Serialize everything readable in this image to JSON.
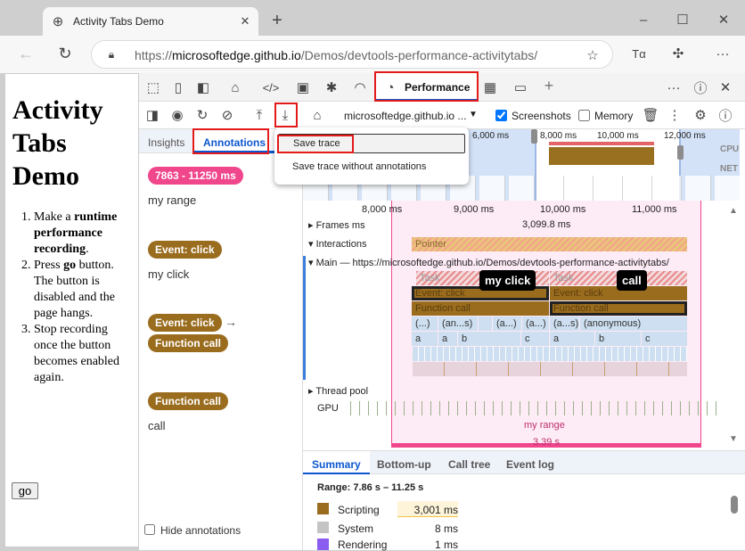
{
  "browser": {
    "tab_title": "Activity Tabs Demo",
    "url_prefix": "https://",
    "url_host": "microsoftedge.github.io",
    "url_path": "/Demos/devtools-performance-activitytabs/"
  },
  "page": {
    "title": "Activity Tabs Demo",
    "steps": [
      {
        "pre": "Make a ",
        "bold": "runtime performance recording",
        "post": "."
      },
      {
        "pre": "Press ",
        "bold": "go",
        "post": " button. The button is disabled and the page hangs."
      },
      {
        "pre": "Stop recording once the button becomes enabled again.",
        "bold": "",
        "post": ""
      }
    ],
    "go_button": "go"
  },
  "devtools": {
    "active_tab": "Performance",
    "target": "microsoftedge.github.io ...",
    "screenshots_label": "Screenshots",
    "screenshots_checked": true,
    "memory_label": "Memory",
    "memory_checked": false,
    "sidebar_tabs": [
      "Insights",
      "Annotations"
    ],
    "annotations": [
      {
        "chips": [
          {
            "text": "7863 - 11250 ms",
            "color": "#f0468c"
          }
        ],
        "label": "my range"
      },
      {
        "chips": [
          {
            "text": "Event: click",
            "color": "#9a6c1e"
          }
        ],
        "label": "my click"
      },
      {
        "chips": [
          {
            "text": "Event: click",
            "color": "#9a6c1e"
          },
          {
            "text": "Function call",
            "color": "#9a6c1e"
          }
        ],
        "label": ""
      },
      {
        "chips": [
          {
            "text": "Function call",
            "color": "#9a6c1e"
          }
        ],
        "label": "call"
      }
    ],
    "hide_annotations": "Hide annotations",
    "menu": {
      "save": "Save trace",
      "save_without": "Save trace without annotations"
    },
    "overview_ticks": [
      "6,000 ms",
      "8,000 ms",
      "10,000 ms",
      "12,000 ms"
    ],
    "overview_labels": {
      "cpu": "CPU",
      "net": "NET"
    },
    "ruler": [
      "8,000 ms",
      "9,000 ms",
      "10,000 ms",
      "11,000 ms"
    ],
    "tracks": {
      "frames": "Frames",
      "frames_ms": "ms",
      "frame_time": "3,099.8 ms",
      "interactions": "Interactions",
      "pointer": "Pointer",
      "main": "Main — https://microsoftedge.github.io/Demos/devtools-performance-activitytabs/",
      "thread_pool": "Thread pool",
      "gpu": "GPU"
    },
    "flame": {
      "task": "Task",
      "event_click": "Event: click",
      "function_call": "Function call",
      "row4": [
        "(...)",
        "(an...s)",
        "(a...)",
        "(a...)",
        "(a...s)",
        "(anonymous)"
      ],
      "row5": [
        "a",
        "a",
        "b",
        "c",
        "a",
        "b",
        "c"
      ]
    },
    "overlays": {
      "my_click": "my click",
      "call": "call",
      "range_label": "my range",
      "range_duration": "3.39 s"
    },
    "bottom_tabs": [
      "Summary",
      "Bottom-up",
      "Call tree",
      "Event log"
    ],
    "summary": {
      "range": "Range: 7.86 s – 11.25 s",
      "rows": [
        {
          "label": "Scripting",
          "value": "3,001 ms",
          "color": "#9a6c1e"
        },
        {
          "label": "System",
          "value": "8 ms",
          "color": "#c4c4c4"
        },
        {
          "label": "Rendering",
          "value": "1 ms",
          "color": "#8b5cf0"
        }
      ]
    }
  },
  "colors": {
    "accent": "#0b57d0",
    "range": "#f0468c",
    "scripting": "#9a6c1e",
    "highlight": "#e31a1a"
  }
}
